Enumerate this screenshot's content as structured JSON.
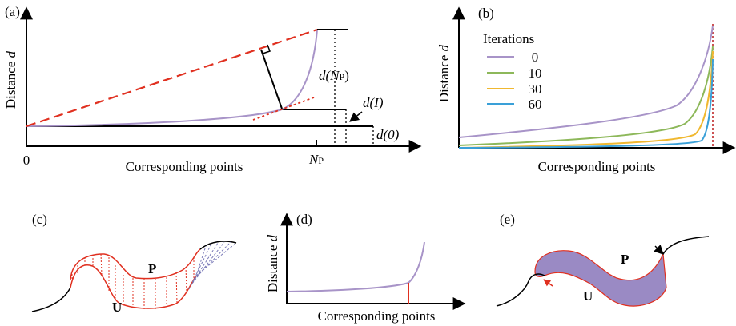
{
  "panels": {
    "a": {
      "label": "(a)",
      "y_axis": {
        "text": "Distance ",
        "var": "d"
      },
      "origin": "0",
      "x_axis": "Corresponding points",
      "np": {
        "main": "N",
        "sub": "P"
      },
      "d_np": {
        "pre": "d(",
        "main": "N",
        "sub": "P",
        "post": ")"
      },
      "d_i": "d(I)",
      "d_0": "d(0)"
    },
    "b": {
      "label": "(b)",
      "y_axis": {
        "text": "Distance ",
        "var": "d"
      },
      "x_axis": "Corresponding points",
      "legend_title": "Iterations",
      "legend": [
        "0",
        "10",
        "30",
        "60"
      ]
    },
    "c": {
      "label": "(c)",
      "p": "P",
      "u": "U"
    },
    "d": {
      "label": "(d)",
      "y_axis": {
        "text": "Distance ",
        "var": "d"
      },
      "x_axis": "Corresponding points"
    },
    "e": {
      "label": "(e)",
      "p": "P",
      "u": "U"
    }
  }
}
